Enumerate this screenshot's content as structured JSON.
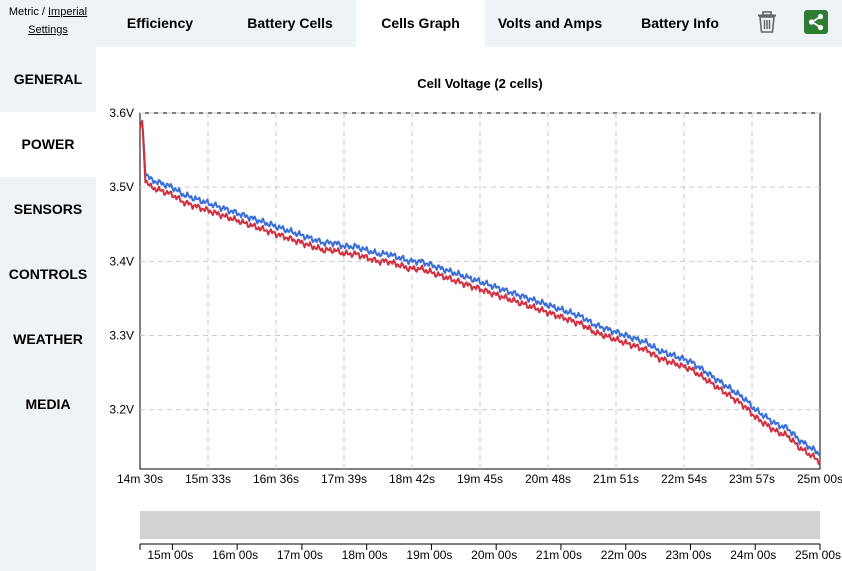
{
  "units": {
    "metric": "Metric",
    "separator": " / ",
    "imperial": "Imperial",
    "settings": "Settings"
  },
  "tabs": [
    {
      "label": "Efficiency"
    },
    {
      "label": "Battery Cells"
    },
    {
      "label": "Cells Graph",
      "active": true
    },
    {
      "label": "Volts and Amps"
    },
    {
      "label": "Battery Info"
    }
  ],
  "icons": {
    "delete": "trash-icon",
    "share": "share-icon",
    "share_color": "#2e7d32"
  },
  "sidebar": [
    {
      "label": "GENERAL"
    },
    {
      "label": "POWER",
      "active": true
    },
    {
      "label": "SENSORS"
    },
    {
      "label": "CONTROLS"
    },
    {
      "label": "WEATHER"
    },
    {
      "label": "MEDIA"
    }
  ],
  "chart_data": {
    "type": "line",
    "title": "Cell Voltage (2 cells)",
    "xlabel": "",
    "ylabel": "",
    "x_unit": "seconds",
    "xlim": [
      870,
      1500
    ],
    "ylim": [
      3.12,
      3.6
    ],
    "grid": true,
    "x_ticks": [
      {
        "value": 870,
        "label": "14m 30s"
      },
      {
        "value": 933,
        "label": "15m 33s"
      },
      {
        "value": 996,
        "label": "16m 36s"
      },
      {
        "value": 1059,
        "label": "17m 39s"
      },
      {
        "value": 1122,
        "label": "18m 42s"
      },
      {
        "value": 1185,
        "label": "19m 45s"
      },
      {
        "value": 1248,
        "label": "20m 48s"
      },
      {
        "value": 1311,
        "label": "21m 51s"
      },
      {
        "value": 1374,
        "label": "22m 54s"
      },
      {
        "value": 1437,
        "label": "23m 57s"
      },
      {
        "value": 1500,
        "label": "25m 00s"
      }
    ],
    "y_ticks": [
      {
        "value": 3.6,
        "label": "3.6V"
      },
      {
        "value": 3.5,
        "label": "3.5V"
      },
      {
        "value": 3.4,
        "label": "3.4V"
      },
      {
        "value": 3.3,
        "label": "3.3V"
      },
      {
        "value": 3.2,
        "label": "3.2V"
      }
    ],
    "series": [
      {
        "color": "#3a6fd8",
        "x": [
          870,
          872,
          875,
          880,
          890,
          900,
          910,
          920,
          930,
          940,
          950,
          960,
          970,
          980,
          990,
          1000,
          1010,
          1020,
          1030,
          1040,
          1050,
          1060,
          1070,
          1080,
          1090,
          1100,
          1110,
          1120,
          1130,
          1140,
          1150,
          1160,
          1170,
          1180,
          1190,
          1200,
          1210,
          1220,
          1230,
          1240,
          1250,
          1260,
          1270,
          1280,
          1290,
          1300,
          1310,
          1320,
          1330,
          1340,
          1350,
          1360,
          1370,
          1380,
          1390,
          1400,
          1410,
          1420,
          1430,
          1440,
          1450,
          1460,
          1470,
          1480,
          1490,
          1495,
          1500
        ],
        "y": [
          3.58,
          3.59,
          3.52,
          3.51,
          3.505,
          3.5,
          3.49,
          3.485,
          3.48,
          3.475,
          3.47,
          3.465,
          3.46,
          3.455,
          3.45,
          3.445,
          3.44,
          3.435,
          3.43,
          3.425,
          3.425,
          3.42,
          3.42,
          3.415,
          3.41,
          3.41,
          3.405,
          3.4,
          3.4,
          3.395,
          3.39,
          3.385,
          3.38,
          3.375,
          3.37,
          3.365,
          3.36,
          3.355,
          3.35,
          3.345,
          3.34,
          3.335,
          3.33,
          3.325,
          3.315,
          3.31,
          3.305,
          3.3,
          3.295,
          3.29,
          3.28,
          3.275,
          3.27,
          3.265,
          3.255,
          3.245,
          3.235,
          3.225,
          3.215,
          3.2,
          3.19,
          3.18,
          3.175,
          3.16,
          3.15,
          3.145,
          3.14
        ]
      },
      {
        "color": "#d23040",
        "x": [
          870,
          872,
          875,
          880,
          890,
          900,
          910,
          920,
          930,
          940,
          950,
          960,
          970,
          980,
          990,
          1000,
          1010,
          1020,
          1030,
          1040,
          1050,
          1060,
          1070,
          1080,
          1090,
          1100,
          1110,
          1120,
          1130,
          1140,
          1150,
          1160,
          1170,
          1180,
          1190,
          1200,
          1210,
          1220,
          1230,
          1240,
          1250,
          1260,
          1270,
          1280,
          1290,
          1300,
          1310,
          1320,
          1330,
          1340,
          1350,
          1360,
          1370,
          1380,
          1390,
          1400,
          1410,
          1420,
          1430,
          1440,
          1450,
          1460,
          1470,
          1480,
          1490,
          1495,
          1500
        ],
        "y": [
          3.58,
          3.59,
          3.51,
          3.5,
          3.495,
          3.49,
          3.48,
          3.475,
          3.47,
          3.465,
          3.46,
          3.455,
          3.45,
          3.445,
          3.44,
          3.435,
          3.43,
          3.425,
          3.42,
          3.415,
          3.415,
          3.41,
          3.41,
          3.405,
          3.4,
          3.4,
          3.395,
          3.39,
          3.39,
          3.385,
          3.38,
          3.375,
          3.37,
          3.365,
          3.36,
          3.355,
          3.35,
          3.345,
          3.34,
          3.335,
          3.33,
          3.325,
          3.32,
          3.315,
          3.305,
          3.3,
          3.295,
          3.29,
          3.285,
          3.28,
          3.27,
          3.265,
          3.26,
          3.255,
          3.245,
          3.235,
          3.225,
          3.215,
          3.205,
          3.19,
          3.18,
          3.17,
          3.165,
          3.15,
          3.14,
          3.135,
          3.13
        ]
      }
    ]
  },
  "navigator": {
    "xlim": [
      870,
      1500
    ],
    "ticks": [
      {
        "value": 900,
        "label": "15m 00s"
      },
      {
        "value": 960,
        "label": "16m 00s"
      },
      {
        "value": 1020,
        "label": "17m 00s"
      },
      {
        "value": 1080,
        "label": "18m 00s"
      },
      {
        "value": 1140,
        "label": "19m 00s"
      },
      {
        "value": 1200,
        "label": "20m 00s"
      },
      {
        "value": 1260,
        "label": "21m 00s"
      },
      {
        "value": 1320,
        "label": "22m 00s"
      },
      {
        "value": 1380,
        "label": "23m 00s"
      },
      {
        "value": 1440,
        "label": "24m 00s"
      },
      {
        "value": 1500,
        "label": "25m 00s"
      }
    ],
    "fill_color": "#d3d3d3"
  }
}
